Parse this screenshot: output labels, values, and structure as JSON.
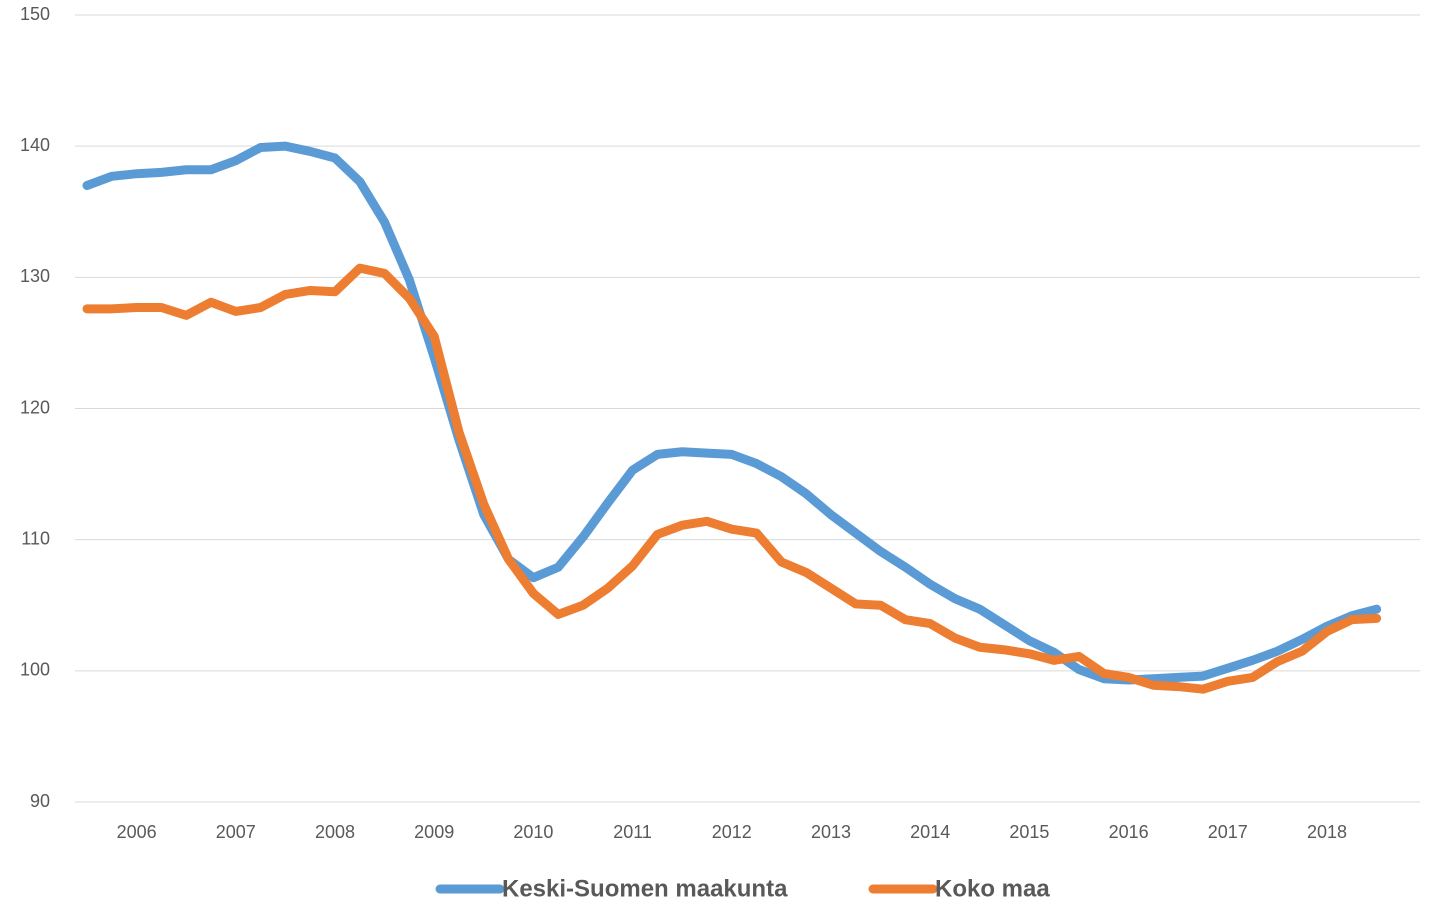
{
  "chart_data": {
    "type": "line",
    "categories": [
      null,
      null,
      "2006",
      null,
      null,
      null,
      "2007",
      null,
      null,
      null,
      "2008",
      null,
      null,
      null,
      "2009",
      null,
      null,
      null,
      "2010",
      null,
      null,
      null,
      "2011",
      null,
      null,
      null,
      "2012",
      null,
      null,
      null,
      "2013",
      null,
      null,
      null,
      "2014",
      null,
      null,
      null,
      "2015",
      null,
      null,
      null,
      "2016",
      null,
      null,
      null,
      "2017",
      null,
      null,
      null,
      "2018",
      null,
      null
    ],
    "series": [
      {
        "name": "Keski-Suomen maakunta",
        "color": "#5b9bd5",
        "values": [
          137.0,
          137.7,
          137.9,
          138.0,
          138.2,
          138.2,
          138.9,
          139.9,
          140.0,
          139.6,
          139.1,
          137.3,
          134.2,
          129.8,
          123.9,
          117.6,
          111.9,
          108.5,
          107.1,
          107.9,
          110.2,
          112.8,
          115.3,
          116.5,
          116.7,
          116.6,
          116.5,
          115.8,
          114.8,
          113.5,
          111.9,
          110.5,
          109.1,
          107.9,
          106.6,
          105.5,
          104.7,
          103.5,
          102.3,
          101.4,
          100.1,
          99.4,
          99.3,
          99.4,
          99.5,
          99.6,
          100.2,
          100.8,
          101.5,
          102.4,
          103.4,
          104.2,
          104.7
        ]
      },
      {
        "name": "Koko maa",
        "color": "#ed7d31",
        "values": [
          127.6,
          127.6,
          127.7,
          127.7,
          127.1,
          128.1,
          127.4,
          127.7,
          128.7,
          129.0,
          128.9,
          130.7,
          130.3,
          128.4,
          125.5,
          118.2,
          112.7,
          108.5,
          105.9,
          104.3,
          105.0,
          106.3,
          108.0,
          110.4,
          111.1,
          111.4,
          110.8,
          110.5,
          108.3,
          107.5,
          106.3,
          105.1,
          105.0,
          103.9,
          103.6,
          102.5,
          101.8,
          101.6,
          101.3,
          100.8,
          101.1,
          99.8,
          99.5,
          98.9,
          98.8,
          98.6,
          99.2,
          99.5,
          100.7,
          101.5,
          103.0,
          103.9,
          104.0
        ]
      }
    ],
    "ylim": [
      90,
      150
    ],
    "yticks": [
      90,
      100,
      110,
      120,
      130,
      140,
      150
    ],
    "grid": true,
    "legend": "bottom"
  }
}
